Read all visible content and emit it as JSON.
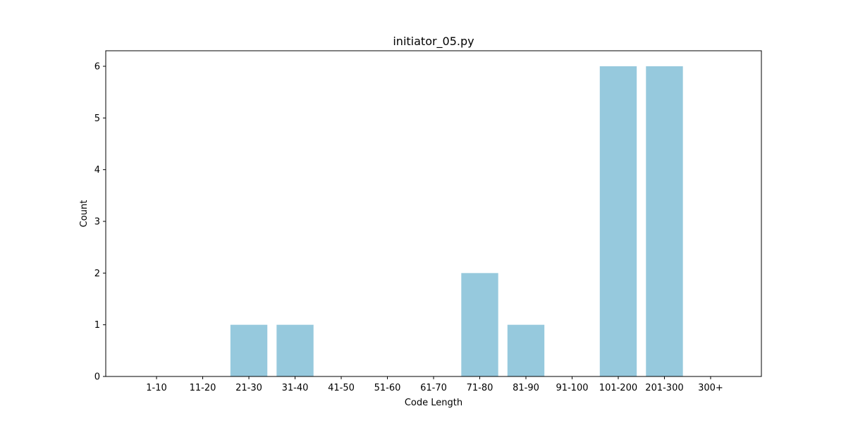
{
  "chart_data": {
    "type": "bar",
    "title": "initiator_05.py",
    "xlabel": "Code Length",
    "ylabel": "Count",
    "categories": [
      "1-10",
      "11-20",
      "21-30",
      "31-40",
      "41-50",
      "51-60",
      "61-70",
      "71-80",
      "81-90",
      "91-100",
      "101-200",
      "201-300",
      "300+"
    ],
    "values": [
      0,
      0,
      1,
      1,
      0,
      0,
      0,
      2,
      1,
      0,
      6,
      6,
      0
    ],
    "ylim": [
      0,
      6.3
    ],
    "yticks": [
      "0",
      "1",
      "2",
      "3",
      "4",
      "5",
      "6"
    ],
    "grid": false,
    "bar_color": "#96c9dd"
  }
}
